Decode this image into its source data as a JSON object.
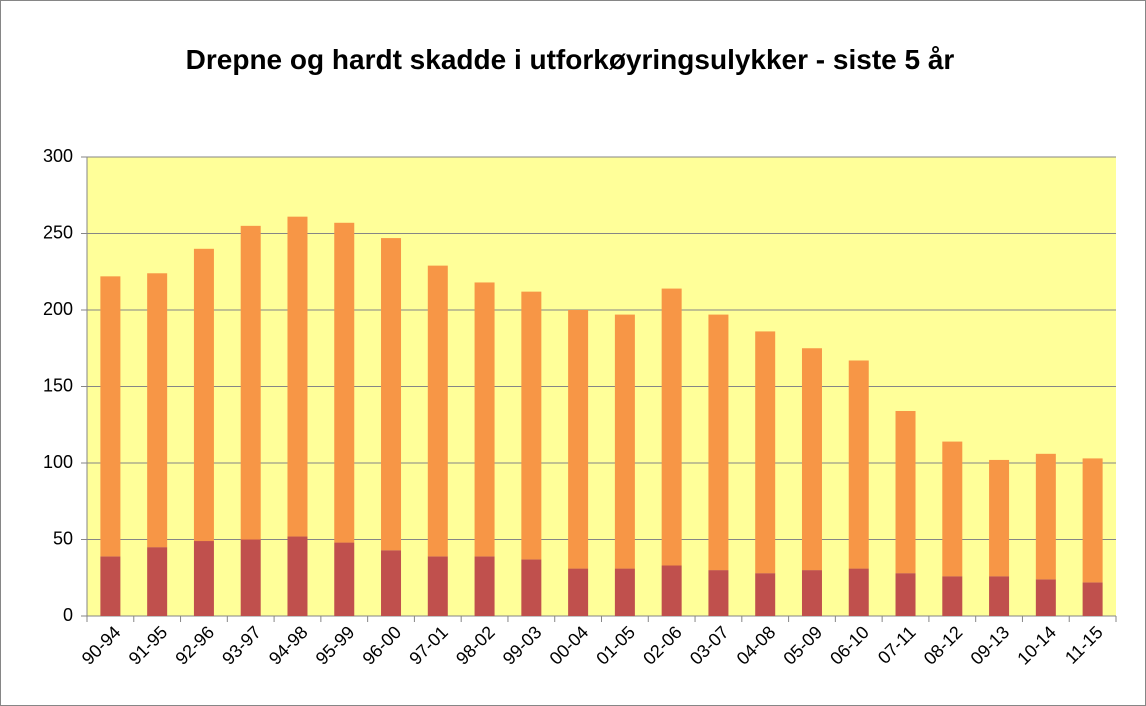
{
  "chart_data": {
    "type": "bar",
    "stacked": true,
    "title": "Drepne og hardt skadde i utforkøyringsulykker - siste 5 år",
    "categories": [
      "90-94",
      "91-95",
      "92-96",
      "93-97",
      "94-98",
      "95-99",
      "96-00",
      "97-01",
      "98-02",
      "99-03",
      "00-04",
      "01-05",
      "02-06",
      "03-07",
      "04-08",
      "05-09",
      "06-10",
      "07-11",
      "08-12",
      "09-13",
      "10-14",
      "11-15"
    ],
    "series": [
      {
        "color": "#c0504d",
        "values": [
          39,
          45,
          49,
          50,
          52,
          48,
          43,
          39,
          39,
          37,
          31,
          31,
          33,
          30,
          28,
          30,
          31,
          28,
          26,
          26,
          24,
          22
        ]
      },
      {
        "color": "#f79646",
        "values": [
          183,
          179,
          191,
          205,
          209,
          209,
          204,
          190,
          179,
          175,
          169,
          166,
          181,
          167,
          158,
          145,
          136,
          106,
          88,
          76,
          82,
          81
        ]
      }
    ],
    "ylim": [
      0,
      300
    ],
    "yticks": [
      0,
      50,
      100,
      150,
      200,
      250,
      300
    ],
    "grid": true,
    "plot_background": "#ffff99"
  }
}
